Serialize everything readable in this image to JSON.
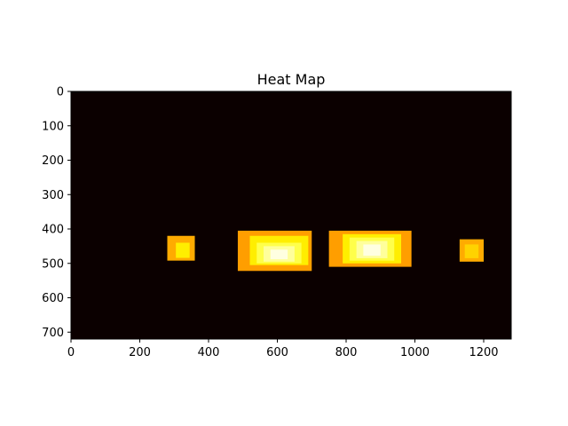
{
  "chart_data": {
    "type": "heatmap",
    "title": "Heat Map",
    "xlabel": "",
    "ylabel": "",
    "xlim": [
      0,
      1280
    ],
    "ylim": [
      720,
      0
    ],
    "x_ticks": [
      0,
      200,
      400,
      600,
      800,
      1000,
      1200
    ],
    "y_ticks": [
      0,
      100,
      200,
      300,
      400,
      500,
      600,
      700
    ],
    "x_tick_labels": [
      "0",
      "200",
      "400",
      "600",
      "800",
      "1000",
      "1200"
    ],
    "y_tick_labels": [
      "0",
      "100",
      "200",
      "300",
      "400",
      "500",
      "600",
      "700"
    ],
    "colormap": "hot",
    "background_color": "#0b0000",
    "value_range": [
      0,
      1
    ],
    "grid": false,
    "regions": [
      {
        "x0": 280,
        "x1": 360,
        "y0": 420,
        "y1": 492,
        "value": 0.62
      },
      {
        "x0": 305,
        "x1": 345,
        "y0": 440,
        "y1": 484,
        "value": 0.72
      },
      {
        "x0": 485,
        "x1": 700,
        "y0": 405,
        "y1": 522,
        "value": 0.6
      },
      {
        "x0": 520,
        "x1": 690,
        "y0": 420,
        "y1": 505,
        "value": 0.72
      },
      {
        "x0": 540,
        "x1": 670,
        "y0": 440,
        "y1": 500,
        "value": 0.82
      },
      {
        "x0": 560,
        "x1": 650,
        "y0": 450,
        "y1": 495,
        "value": 0.9
      },
      {
        "x0": 580,
        "x1": 630,
        "y0": 460,
        "y1": 488,
        "value": 0.97
      },
      {
        "x0": 750,
        "x1": 990,
        "y0": 405,
        "y1": 510,
        "value": 0.6
      },
      {
        "x0": 790,
        "x1": 960,
        "y0": 415,
        "y1": 500,
        "value": 0.72
      },
      {
        "x0": 810,
        "x1": 940,
        "y0": 425,
        "y1": 492,
        "value": 0.82
      },
      {
        "x0": 830,
        "x1": 920,
        "y0": 435,
        "y1": 485,
        "value": 0.9
      },
      {
        "x0": 850,
        "x1": 900,
        "y0": 445,
        "y1": 478,
        "value": 0.97
      },
      {
        "x0": 1130,
        "x1": 1200,
        "y0": 430,
        "y1": 495,
        "value": 0.62
      },
      {
        "x0": 1145,
        "x1": 1185,
        "y0": 445,
        "y1": 485,
        "value": 0.68
      }
    ]
  }
}
